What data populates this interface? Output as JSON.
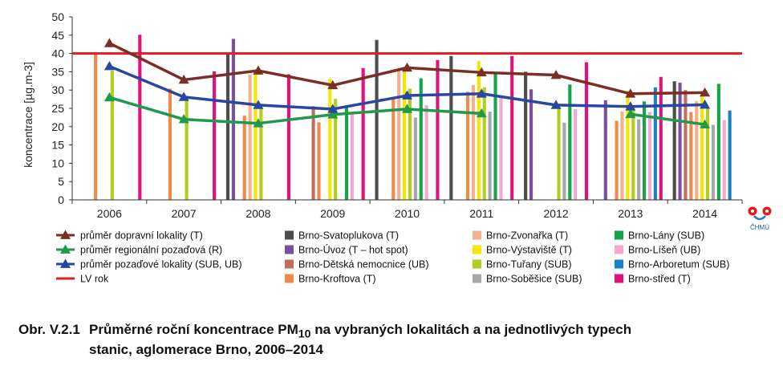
{
  "chart_data": {
    "type": "bar",
    "ylabel": "koncentrace [µg.m-3]",
    "ylim": [
      0,
      50
    ],
    "yticks": [
      0,
      5,
      10,
      15,
      20,
      25,
      30,
      35,
      40,
      45,
      50
    ],
    "categories": [
      "2006",
      "2007",
      "2008",
      "2009",
      "2010",
      "2011",
      "2012",
      "2013",
      "2014"
    ],
    "grid": false,
    "legend_position": "bottom",
    "bar_series": [
      {
        "name": "Brno-Svatoplukova (T)",
        "color": "#4d4d4d",
        "values": [
          null,
          null,
          40.0,
          null,
          43.7,
          39.3,
          35.0,
          null,
          32.4
        ]
      },
      {
        "name": "Brno-Úvoz (T – hot spot)",
        "color": "#7b4fa0",
        "values": [
          null,
          null,
          44.0,
          null,
          null,
          null,
          30.2,
          27.2,
          32.0
        ]
      },
      {
        "name": "Brno-Dětská nemocnice (UB)",
        "color": "#c0705a",
        "values": [
          null,
          null,
          null,
          25.6,
          null,
          null,
          null,
          null,
          30.0
        ]
      },
      {
        "name": "Brno-Kroftova (T)",
        "color": "#f08a4b",
        "values": [
          40.2,
          30.4,
          23.0,
          21.2,
          27.7,
          29.5,
          null,
          21.6,
          24.0
        ]
      },
      {
        "name": "Brno-Zvonařka (T)",
        "color": "#f4b08e",
        "values": [
          null,
          null,
          34.2,
          null,
          35.7,
          31.4,
          null,
          24.2,
          27.0
        ]
      },
      {
        "name": "Brno-Výstaviště (T)",
        "color": "#f5e600",
        "values": [
          null,
          null,
          35.4,
          33.1,
          36.2,
          37.9,
          null,
          29.8,
          29.0
        ]
      },
      {
        "name": "Brno-Tuřany (SUB)",
        "color": "#b2cd1e",
        "values": [
          35.3,
          27.2,
          25.3,
          27.6,
          30.4,
          30.7,
          25.2,
          24.6,
          25.0
        ]
      },
      {
        "name": "Brno-Soběšice (SUB)",
        "color": "#a8a8a8",
        "values": [
          null,
          null,
          null,
          null,
          22.5,
          24.1,
          21.1,
          22.0,
          20.5
        ]
      },
      {
        "name": "Brno-Lány (SUB)",
        "color": "#16a34a",
        "values": [
          null,
          null,
          null,
          25.5,
          33.2,
          34.4,
          31.5,
          26.9,
          31.7
        ]
      },
      {
        "name": "Brno-Líšeň (UB)",
        "color": "#f4a8cf",
        "values": [
          null,
          null,
          null,
          23.3,
          25.9,
          28.4,
          24.8,
          24.0,
          21.8
        ]
      },
      {
        "name": "Brno-Arboretum (SUB)",
        "color": "#1a82c4",
        "values": [
          null,
          null,
          null,
          null,
          null,
          null,
          null,
          30.7,
          24.4
        ]
      },
      {
        "name": "Brno-střed (T)",
        "color": "#e0127c",
        "values": [
          45.1,
          35.1,
          34.3,
          36.0,
          38.2,
          39.3,
          37.6,
          33.6,
          null
        ]
      }
    ],
    "line_series": [
      {
        "name": "průměr dopravní lokality (T)",
        "color": "#7b2e24",
        "values": [
          42.8,
          32.8,
          35.3,
          31.3,
          36.1,
          34.8,
          34.1,
          29.0,
          29.3
        ]
      },
      {
        "name": "průměr regionální pozaďová (R)",
        "color": "#1f9a4a",
        "values": [
          28.0,
          22.0,
          20.9,
          23.3,
          24.8,
          23.6,
          null,
          23.4,
          20.6
        ]
      },
      {
        "name": "průměr pozaďové lokality (SUB, UB)",
        "color": "#2747a0",
        "values": [
          36.5,
          28.1,
          25.9,
          24.8,
          28.5,
          29.0,
          25.9,
          25.5,
          26.0
        ]
      }
    ],
    "limit_line": {
      "name": "LV rok",
      "value": 40,
      "color": "#e31b1b"
    }
  },
  "caption": {
    "number": "Obr. V.2.1",
    "text_part1": "Průměrné roční koncentrace PM",
    "subscript": "10",
    "text_part2": " na vybraných lokalitách a na jednotlivých typech",
    "text_line2": "stanic, aglomerace Brno, 2006–2014"
  },
  "logo": {
    "text": "ČHMÚ"
  }
}
